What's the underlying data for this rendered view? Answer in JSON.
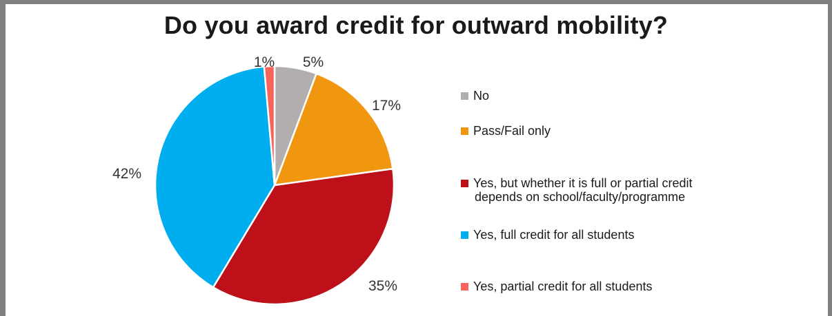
{
  "chart_data": {
    "type": "pie",
    "title": "Do you award credit for outward mobility?",
    "slices": [
      {
        "label": "No",
        "value": 5,
        "display": "5%",
        "color": "#b2aeae"
      },
      {
        "label": "Pass/Fail only",
        "value": 17,
        "display": "17%",
        "color": "#f0960f"
      },
      {
        "label": "Yes, but whether it is full or partial credit depends on school/faculty/programme",
        "value": 35,
        "display": "35%",
        "color": "#bd1019"
      },
      {
        "label": "Yes, full credit for all students",
        "value": 42,
        "display": "42%",
        "color": "#00aeef"
      },
      {
        "label": "Yes, partial credit  for all students",
        "value": 1,
        "display": "1%",
        "color": "#f9645a"
      }
    ],
    "legend_placement": "right"
  },
  "legend": {
    "items": [
      {
        "lines": [
          "No"
        ]
      },
      {
        "lines": [
          "Pass/Fail only"
        ]
      },
      {
        "lines": [
          "Yes, but whether it is full or partial credit",
          "depends on school/faculty/programme"
        ]
      },
      {
        "lines": [
          "Yes, full credit for all students"
        ]
      },
      {
        "lines": [
          "Yes, partial credit  for all students"
        ]
      }
    ]
  }
}
